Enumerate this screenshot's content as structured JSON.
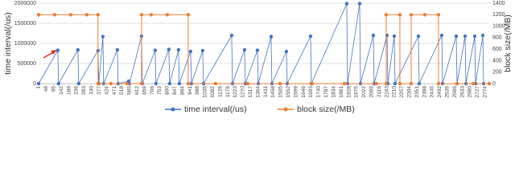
{
  "chart_data": {
    "type": "line",
    "ylabel": "time interval(/us)",
    "y2label": "block size(/MB)",
    "xlim": [
      1,
      2800
    ],
    "xticks": [
      1,
      48,
      95,
      142,
      189,
      236,
      283,
      330,
      377,
      424,
      471,
      518,
      565,
      612,
      659,
      706,
      753,
      800,
      847,
      894,
      941,
      988,
      1035,
      1082,
      1129,
      1176,
      1223,
      1270,
      1317,
      1364,
      1411,
      1458,
      1505,
      1552,
      1599,
      1646,
      1693,
      1740,
      1787,
      1834,
      1881,
      1928,
      1975,
      2022,
      2069,
      2116,
      2163,
      2210,
      2257,
      2304,
      2351,
      2398,
      2445,
      2492,
      2539,
      2586,
      2633,
      2680,
      2727,
      2774
    ],
    "ylim": [
      0,
      2000000
    ],
    "yticks": [
      0,
      500000,
      1000000,
      1500000,
      2000000
    ],
    "y2lim": [
      0,
      1400
    ],
    "y2ticks": [
      0,
      200,
      400,
      600,
      800,
      1000,
      1200,
      1400
    ],
    "grid": true,
    "legend": "bottom",
    "series": [
      {
        "name": "time interval(/us)",
        "color": "#4472c4",
        "x": [
          1,
          120,
          125,
          245,
          250,
          370,
          375,
          400,
          405,
          490,
          495,
          560,
          565,
          640,
          645,
          725,
          730,
          810,
          815,
          870,
          875,
          945,
          950,
          1020,
          1025,
          1200,
          1205,
          1280,
          1285,
          1360,
          1365,
          1445,
          1450,
          1540,
          1545,
          1690,
          1695,
          1915,
          1920,
          1995,
          2000,
          2080,
          2085,
          2165,
          2170,
          2210,
          2215,
          2360,
          2365,
          2505,
          2510,
          2595,
          2600,
          2650,
          2655,
          2710,
          2715,
          2760,
          2765,
          2800
        ],
        "values": [
          0,
          830000,
          0,
          840000,
          0,
          820000,
          0,
          1170000,
          0,
          840000,
          0,
          60000,
          0,
          1180000,
          0,
          830000,
          0,
          850000,
          0,
          840000,
          0,
          800000,
          0,
          820000,
          0,
          1200000,
          0,
          840000,
          0,
          830000,
          0,
          1170000,
          0,
          800000,
          0,
          1180000,
          0,
          1990000,
          0,
          1990000,
          0,
          1200000,
          0,
          1200000,
          0,
          1180000,
          0,
          1180000,
          0,
          1200000,
          0,
          1180000,
          0,
          1180000,
          0,
          1180000,
          0,
          1200000,
          0,
          0
        ]
      },
      {
        "name": "block size(/MB)",
        "color": "#ed7d31",
        "axis": "y2",
        "x": [
          1,
          100,
          200,
          300,
          370,
          370,
          450,
          550,
          640,
          640,
          700,
          800,
          930,
          930,
          1100,
          1300,
          1500,
          1700,
          1900,
          2100,
          2160,
          2160,
          2245,
          2245,
          2315,
          2315,
          2400,
          2485,
          2485,
          2600,
          2700,
          2800
        ],
        "values": [
          1200,
          1200,
          1200,
          1200,
          1200,
          0,
          0,
          0,
          0,
          1200,
          1200,
          1200,
          1200,
          0,
          0,
          0,
          0,
          0,
          0,
          0,
          0,
          1200,
          1200,
          0,
          0,
          1200,
          1200,
          1200,
          0,
          0,
          0,
          0
        ]
      }
    ]
  }
}
